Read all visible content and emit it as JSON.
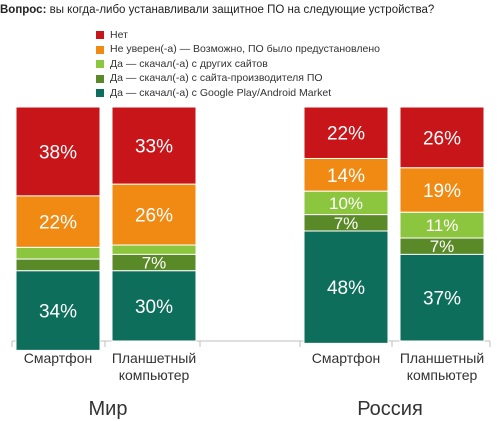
{
  "header": {
    "question_prefix": "Вопрос:",
    "question_text": " вы когда-либо устанавливали защитное ПО на следующие устройства?"
  },
  "chart_data": {
    "type": "bar",
    "stacked": true,
    "normalized_to": 100,
    "series": [
      {
        "name": "Нет",
        "color": "#c8151a",
        "values": [
          38,
          33,
          22,
          26
        ]
      },
      {
        "name": "Не уверен(-а) — Возможно, ПО было предустановлено",
        "color": "#f08a12",
        "values": [
          22,
          26,
          14,
          19
        ]
      },
      {
        "name": "Да — скачал(-а) с других  сайтов",
        "color": "#8cc63e",
        "values": [
          5,
          4,
          10,
          11
        ]
      },
      {
        "name": "Да — скачал(-а) с сайта-производителя  ПО",
        "color": "#5a8a28",
        "values": [
          5,
          7,
          7,
          7
        ]
      },
      {
        "name": "Да — скачал(-а) с Google Play/Android Market",
        "color": "#0e6e5c",
        "values": [
          34,
          30,
          48,
          37
        ]
      }
    ],
    "bar_labels": [
      [
        "38%",
        "22%",
        "",
        "",
        "34%"
      ],
      [
        "33%",
        "26%",
        "",
        "7%",
        "30%"
      ],
      [
        "22%",
        "14%",
        "10%",
        "7%",
        "48%"
      ],
      [
        "26%",
        "19%",
        "11%",
        "7%",
        "37%"
      ]
    ],
    "categories": [
      "Смартфон",
      "Планшетный компьютер",
      "Смартфон",
      "Планшетный компьютер"
    ],
    "category_lines": [
      [
        "Смартфон"
      ],
      [
        "Планшетный",
        "компьютер"
      ],
      [
        "Смартфон"
      ],
      [
        "Планшетный",
        "компьютер"
      ]
    ],
    "groups": [
      "Мир",
      "Россия"
    ],
    "legend_position": "top"
  }
}
